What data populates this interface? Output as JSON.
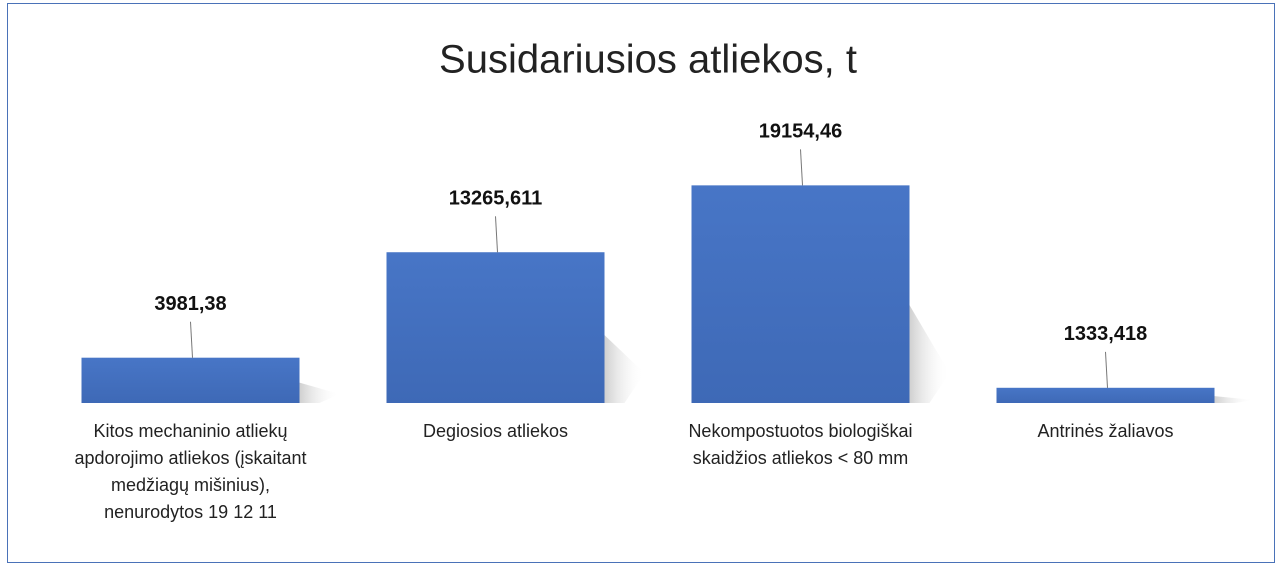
{
  "chart_data": {
    "type": "bar",
    "title": "Susidariusios atliekos, t",
    "categories": [
      "Kitos mechaninio atliekų apdorojimo atliekos (įskaitant medžiagų mišinius), nenurodytos 19 12 11",
      "Degiosios atliekos",
      "Nekompostuotos biologiškai skaidžios atliekos < 80 mm",
      "Antrinės žaliavos"
    ],
    "values": [
      3981.38,
      13265.611,
      19154.46,
      1333.418
    ],
    "value_labels": [
      "3981,38",
      "13265,611",
      "19154,46",
      "1333,418"
    ],
    "color": "#4472c4",
    "ylim": [
      0,
      25000
    ]
  }
}
